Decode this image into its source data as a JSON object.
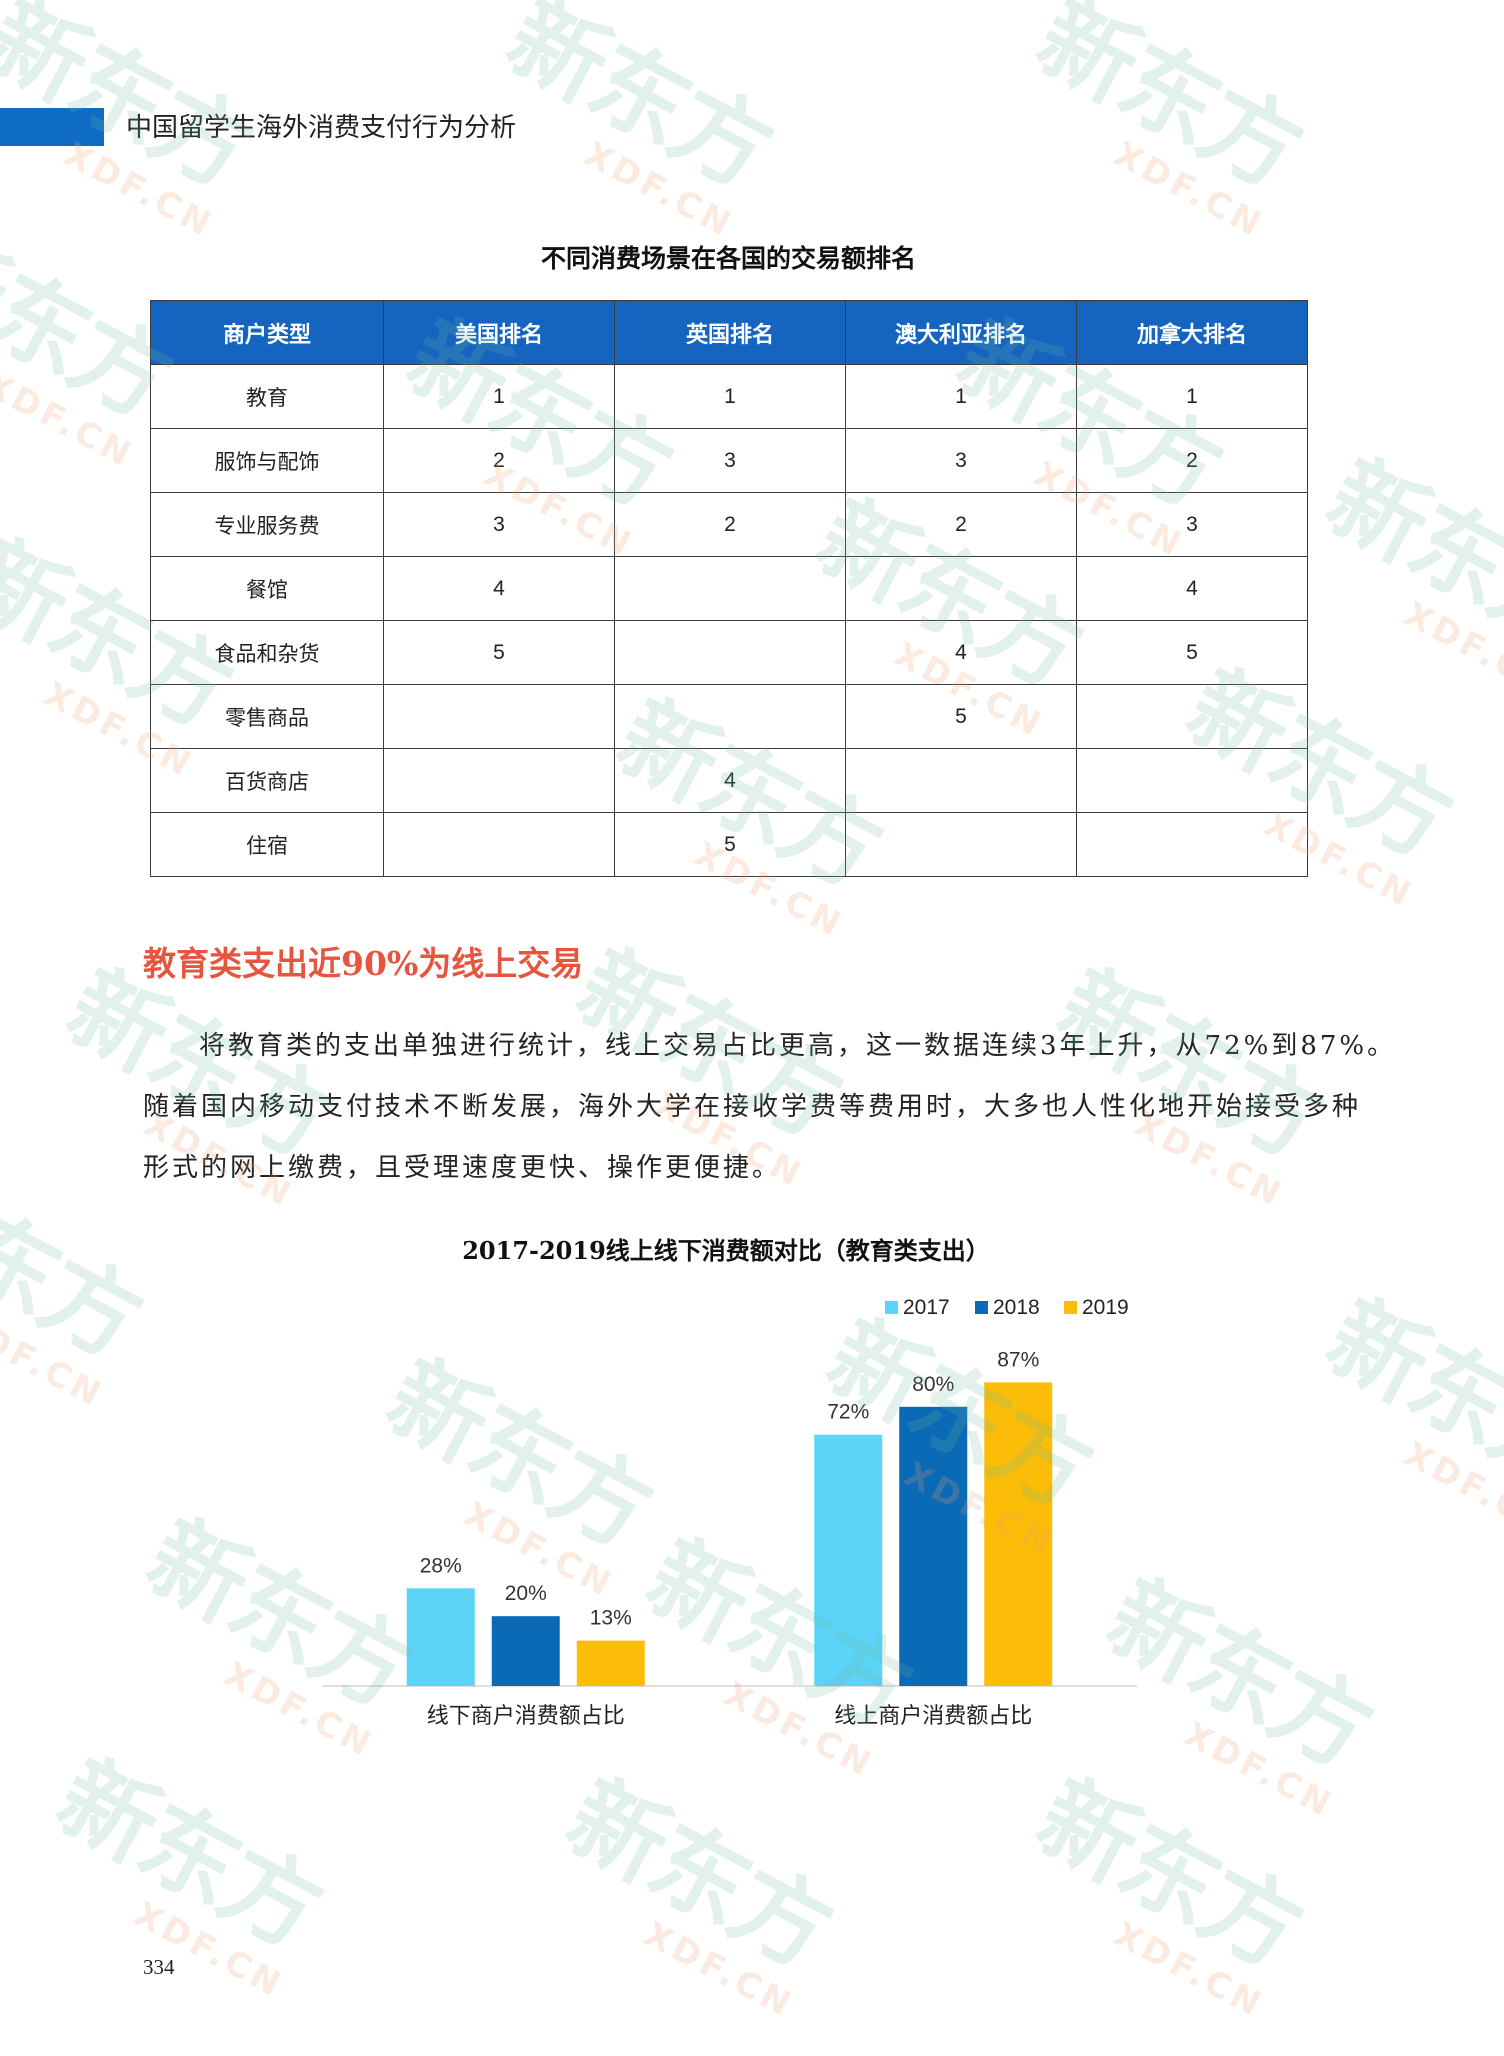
{
  "header": {
    "title": "中国留学生海外消费支付行为分析",
    "accent_color": "#0f6cc4"
  },
  "table": {
    "title": "不同消费场景在各国的交易额排名",
    "header_color": "#1565c0",
    "columns": [
      "商户类型",
      "美国排名",
      "英国排名",
      "澳大利亚排名",
      "加拿大排名"
    ],
    "rows": [
      {
        "type": "教育",
        "ranks": [
          "1",
          "1",
          "1",
          "1"
        ]
      },
      {
        "type": "服饰与配饰",
        "ranks": [
          "2",
          "3",
          "3",
          "2"
        ]
      },
      {
        "type": "专业服务费",
        "ranks": [
          "3",
          "2",
          "2",
          "3"
        ]
      },
      {
        "type": "餐馆",
        "ranks": [
          "4",
          "",
          "",
          "4"
        ]
      },
      {
        "type": "食品和杂货",
        "ranks": [
          "5",
          "",
          "4",
          "5"
        ]
      },
      {
        "type": "零售商品",
        "ranks": [
          "",
          "",
          "5",
          ""
        ]
      },
      {
        "type": "百货商店",
        "ranks": [
          "",
          "4",
          "",
          ""
        ]
      },
      {
        "type": "住宿",
        "ranks": [
          "",
          "5",
          "",
          ""
        ]
      }
    ]
  },
  "section": {
    "heading": "教育类支出近90%为线上交易",
    "heading_color": "#e6553f",
    "paragraph_lines": [
      "将教育类的支出单独进行统计，线上交易占比更高，这一数据连续3年上升，从72%到87%。",
      "随着国内移动支付技术不断发展，海外大学在接收学费等费用时，大多也人性化地开始接受多种",
      "形式的网上缴费，且受理速度更快、操作更便捷。"
    ]
  },
  "chart_data": {
    "type": "bar",
    "title": "2017-2019线上线下消费额对比（教育类支出）",
    "categories": [
      "线下商户消费额占比",
      "线上商户消费额占比"
    ],
    "series": [
      {
        "name": "2017",
        "values": [
          28,
          72
        ],
        "color": "#5bd4f7"
      },
      {
        "name": "2018",
        "values": [
          20,
          80
        ],
        "color": "#0a6ab5"
      },
      {
        "name": "2019",
        "values": [
          13,
          87
        ],
        "color": "#fbbd08"
      }
    ],
    "unit": "%",
    "xlabel": "",
    "ylabel": "",
    "ylim": [
      0,
      100
    ],
    "grid": false,
    "legend": "top-right"
  },
  "page_number": "334",
  "watermark": {
    "logo": "新东方",
    "sub": "XDF.CN"
  }
}
